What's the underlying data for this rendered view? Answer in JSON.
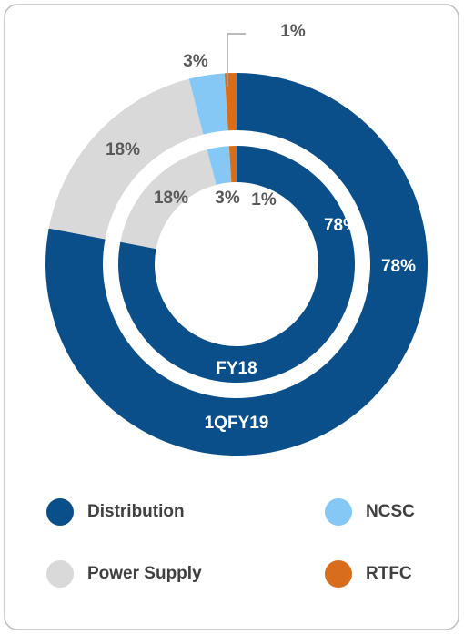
{
  "chart_data": {
    "type": "donut",
    "categories": [
      "Distribution",
      "Power Supply",
      "NCSC",
      "RTFC"
    ],
    "colors": [
      "#0b4f8a",
      "#d9d9d9",
      "#86c8f5",
      "#d86e1c"
    ],
    "series": [
      {
        "name": "1QFY19",
        "values": [
          78,
          18,
          3,
          1
        ],
        "value_labels": [
          "78%",
          "18%",
          "3%",
          "1%"
        ]
      },
      {
        "name": "FY18",
        "values": [
          78,
          18,
          3,
          1
        ],
        "value_labels": [
          "78%",
          "18%",
          "3%",
          "1%"
        ]
      }
    ]
  }
}
